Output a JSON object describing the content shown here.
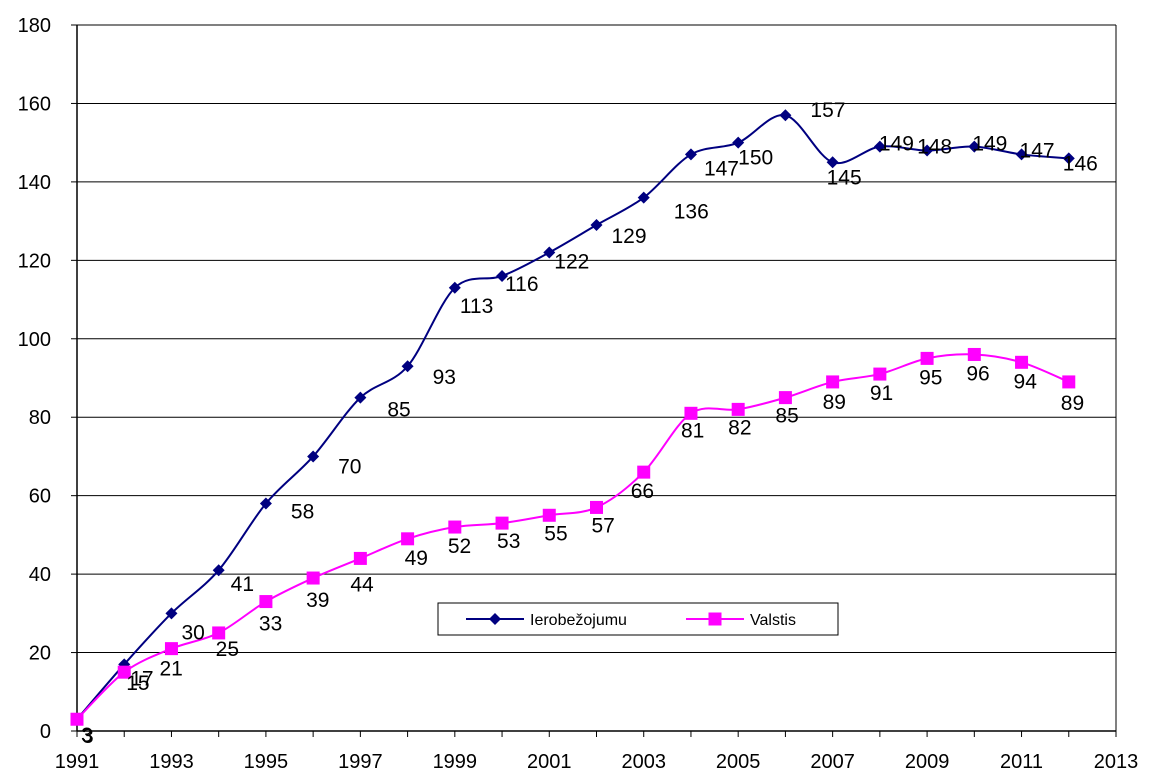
{
  "chart_data": {
    "type": "line",
    "x": [
      1991,
      1992,
      1993,
      1994,
      1995,
      1996,
      1997,
      1998,
      1999,
      2000,
      2001,
      2002,
      2003,
      2004,
      2005,
      2006,
      2007,
      2008,
      2009,
      2010,
      2011,
      2012
    ],
    "series": [
      {
        "name": "Ierobežojumu",
        "color": "#000080",
        "marker": "diamond",
        "values": [
          3,
          17,
          30,
          41,
          58,
          70,
          85,
          93,
          113,
          116,
          122,
          129,
          136,
          147,
          150,
          157,
          145,
          149,
          148,
          149,
          147,
          146
        ]
      },
      {
        "name": "Valstis",
        "color": "#FF00FF",
        "marker": "square",
        "values": [
          3,
          15,
          21,
          25,
          33,
          39,
          44,
          49,
          52,
          53,
          55,
          57,
          66,
          81,
          82,
          85,
          89,
          91,
          95,
          96,
          94,
          89
        ]
      }
    ],
    "title": "",
    "xlabel": "",
    "ylabel": "",
    "xlim": [
      1991,
      2013
    ],
    "ylim": [
      0,
      180
    ],
    "x_ticks": [
      1991,
      1993,
      1995,
      1997,
      1999,
      2001,
      2003,
      2005,
      2007,
      2009,
      2011,
      2013
    ],
    "y_ticks": [
      0,
      20,
      40,
      60,
      80,
      100,
      120,
      140,
      160,
      180
    ],
    "grid": "horizontal",
    "legend_position": "inside-bottom-center"
  }
}
